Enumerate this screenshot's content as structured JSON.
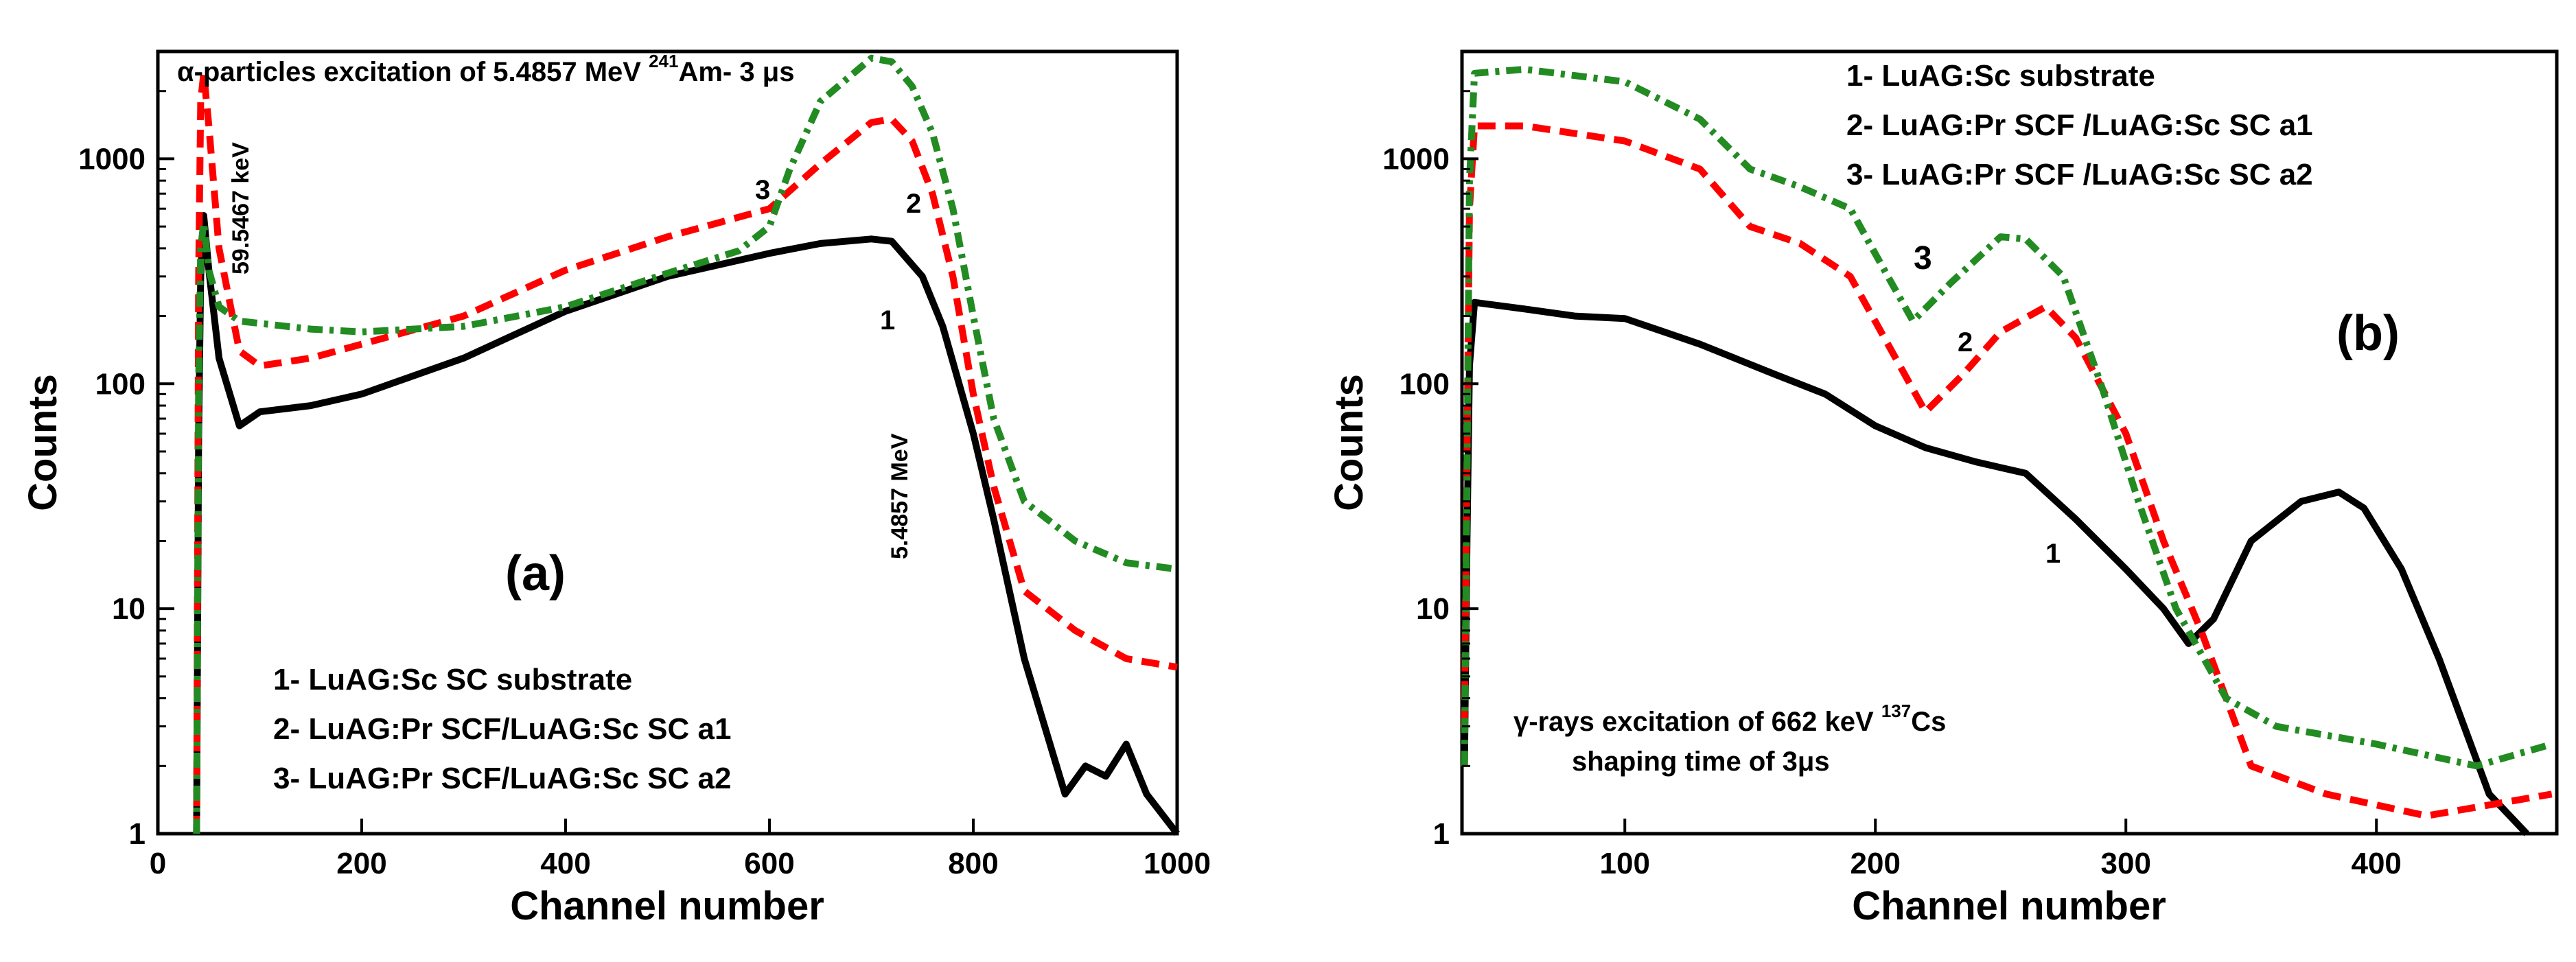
{
  "chart_data": [
    {
      "type": "line",
      "panel_label": "(a)",
      "title": "α-particles excitation of 5.4857 MeV ²⁴¹Am- 3 μs",
      "title_parts": {
        "pre": "α-particles excitation of 5.4857 MeV ",
        "sup": "241",
        "post": "Am- 3 μs"
      },
      "xlabel": "Channel number",
      "ylabel": "Counts",
      "xlim": [
        0,
        1000
      ],
      "ylim": [
        1,
        3000
      ],
      "yscale": "log",
      "x_ticks": [
        0,
        200,
        400,
        600,
        800,
        1000
      ],
      "x_tick_labels": [
        "0",
        "200",
        "400",
        "600",
        "800",
        "1000"
      ],
      "y_ticks": [
        1,
        10,
        100,
        1000
      ],
      "y_tick_labels": [
        "1",
        "10",
        "100",
        "1000"
      ],
      "legend": [
        "1- LuAG:Sc SC substrate",
        "2- LuAG:Pr SCF/LuAG:Sc SC  a1",
        "3- LuAG:Pr SCF/LuAG:Sc SC  a2"
      ],
      "annotations": [
        {
          "text": "59.5467 keV",
          "x": 55,
          "y": 400,
          "rotate": -90
        },
        {
          "text": "5.4857 MeV",
          "x": 690,
          "y": 60,
          "rotate": -90
        },
        {
          "text": "1",
          "x": 700,
          "y": 260
        },
        {
          "text": "2",
          "x": 732,
          "y": 1100
        },
        {
          "text": "3",
          "x": 593,
          "y": 1300
        }
      ],
      "series": [
        {
          "name": "1",
          "color": "#000000",
          "dash": "solid",
          "points": [
            [
              38,
              1
            ],
            [
              40,
              60
            ],
            [
              42,
              300
            ],
            [
              45,
              560
            ],
            [
              50,
              320
            ],
            [
              60,
              130
            ],
            [
              80,
              65
            ],
            [
              100,
              75
            ],
            [
              150,
              80
            ],
            [
              200,
              90
            ],
            [
              300,
              130
            ],
            [
              400,
              210
            ],
            [
              500,
              300
            ],
            [
              600,
              380
            ],
            [
              650,
              420
            ],
            [
              700,
              440
            ],
            [
              720,
              430
            ],
            [
              750,
              300
            ],
            [
              770,
              180
            ],
            [
              800,
              60
            ],
            [
              820,
              25
            ],
            [
              850,
              6
            ],
            [
              870,
              3
            ],
            [
              890,
              1.5
            ],
            [
              910,
              2
            ],
            [
              930,
              1.8
            ],
            [
              950,
              2.5
            ],
            [
              970,
              1.5
            ],
            [
              1000,
              1
            ]
          ]
        },
        {
          "name": "2",
          "color": "#ff0000",
          "dash": "dashed",
          "points": [
            [
              38,
              1
            ],
            [
              40,
              300
            ],
            [
              42,
              1800
            ],
            [
              45,
              2400
            ],
            [
              50,
              1400
            ],
            [
              60,
              400
            ],
            [
              80,
              140
            ],
            [
              100,
              120
            ],
            [
              150,
              130
            ],
            [
              200,
              150
            ],
            [
              300,
              200
            ],
            [
              400,
              320
            ],
            [
              500,
              450
            ],
            [
              600,
              600
            ],
            [
              650,
              950
            ],
            [
              700,
              1450
            ],
            [
              720,
              1500
            ],
            [
              740,
              1200
            ],
            [
              760,
              700
            ],
            [
              780,
              300
            ],
            [
              800,
              90
            ],
            [
              820,
              35
            ],
            [
              850,
              12
            ],
            [
              900,
              8
            ],
            [
              950,
              6
            ],
            [
              1000,
              5.5
            ]
          ]
        },
        {
          "name": "3",
          "color": "#228b22",
          "dash": "dashdot",
          "points": [
            [
              38,
              1
            ],
            [
              40,
              100
            ],
            [
              42,
              400
            ],
            [
              45,
              520
            ],
            [
              50,
              320
            ],
            [
              60,
              220
            ],
            [
              80,
              190
            ],
            [
              150,
              175
            ],
            [
              200,
              170
            ],
            [
              300,
              180
            ],
            [
              400,
              220
            ],
            [
              500,
              310
            ],
            [
              570,
              390
            ],
            [
              600,
              500
            ],
            [
              620,
              900
            ],
            [
              650,
              1800
            ],
            [
              700,
              2800
            ],
            [
              720,
              2700
            ],
            [
              740,
              2100
            ],
            [
              760,
              1300
            ],
            [
              780,
              600
            ],
            [
              800,
              200
            ],
            [
              820,
              70
            ],
            [
              850,
              30
            ],
            [
              900,
              20
            ],
            [
              950,
              16
            ],
            [
              1000,
              15
            ]
          ]
        }
      ]
    },
    {
      "type": "line",
      "panel_label": "(b)",
      "title": "γ-rays excitation of 662 keV ¹³⁷Cs shaping time of 3μs",
      "title_parts": {
        "pre": "γ-rays excitation of 662 keV ",
        "sup": "137",
        "post": "Cs",
        "line2": "shaping time of 3μs"
      },
      "xlabel": "Channel number",
      "ylabel": "Counts",
      "xlim": [
        35,
        472
      ],
      "ylim": [
        1,
        3000
      ],
      "yscale": "log",
      "x_ticks": [
        100,
        200,
        300,
        400
      ],
      "x_tick_labels": [
        "100",
        "200",
        "300",
        "400"
      ],
      "y_ticks": [
        1,
        10,
        100,
        1000
      ],
      "y_tick_labels": [
        "1",
        "10",
        "100",
        "1000"
      ],
      "legend": [
        "1- LuAG:Sc substrate",
        "2- LuAG:Pr SCF /LuAG:Sc SC a1",
        "3- LuAG:Pr SCF /LuAG:Sc SC a2"
      ],
      "annotations": [
        {
          "text": "1",
          "x": 238,
          "y": 14
        },
        {
          "text": "2",
          "x": 212,
          "y": 95
        },
        {
          "text": "3",
          "x": 208,
          "y": 300
        }
      ],
      "series": [
        {
          "name": "1",
          "color": "#000000",
          "dash": "solid",
          "points": [
            [
              36,
              2
            ],
            [
              37,
              20
            ],
            [
              38,
              120
            ],
            [
              40,
              230
            ],
            [
              60,
              215
            ],
            [
              80,
              200
            ],
            [
              100,
              195
            ],
            [
              130,
              150
            ],
            [
              160,
              110
            ],
            [
              180,
              90
            ],
            [
              200,
              65
            ],
            [
              220,
              52
            ],
            [
              240,
              45
            ],
            [
              260,
              40
            ],
            [
              280,
              25
            ],
            [
              300,
              15
            ],
            [
              315,
              10
            ],
            [
              325,
              7
            ],
            [
              335,
              9
            ],
            [
              350,
              20
            ],
            [
              370,
              30
            ],
            [
              385,
              33
            ],
            [
              395,
              28
            ],
            [
              410,
              15
            ],
            [
              425,
              6
            ],
            [
              435,
              3
            ],
            [
              445,
              1.5
            ],
            [
              460,
              1
            ]
          ]
        },
        {
          "name": "2",
          "color": "#ff0000",
          "dash": "dashed",
          "points": [
            [
              36,
              3
            ],
            [
              37,
              50
            ],
            [
              38,
              600
            ],
            [
              40,
              1400
            ],
            [
              60,
              1400
            ],
            [
              100,
              1200
            ],
            [
              130,
              900
            ],
            [
              150,
              500
            ],
            [
              170,
              420
            ],
            [
              190,
              300
            ],
            [
              205,
              150
            ],
            [
              220,
              75
            ],
            [
              235,
              110
            ],
            [
              250,
              170
            ],
            [
              268,
              220
            ],
            [
              280,
              160
            ],
            [
              300,
              60
            ],
            [
              315,
              20
            ],
            [
              330,
              8
            ],
            [
              350,
              2
            ],
            [
              380,
              1.5
            ],
            [
              420,
              1.2
            ],
            [
              470,
              1.5
            ]
          ]
        },
        {
          "name": "3",
          "color": "#228b22",
          "dash": "dashdot",
          "points": [
            [
              36,
              2
            ],
            [
              37,
              40
            ],
            [
              38,
              800
            ],
            [
              40,
              2400
            ],
            [
              60,
              2500
            ],
            [
              100,
              2200
            ],
            [
              130,
              1500
            ],
            [
              150,
              900
            ],
            [
              170,
              750
            ],
            [
              190,
              600
            ],
            [
              205,
              300
            ],
            [
              215,
              190
            ],
            [
              230,
              280
            ],
            [
              250,
              450
            ],
            [
              260,
              440
            ],
            [
              275,
              300
            ],
            [
              290,
              100
            ],
            [
              305,
              30
            ],
            [
              320,
              10
            ],
            [
              340,
              4
            ],
            [
              360,
              3
            ],
            [
              400,
              2.5
            ],
            [
              440,
              2
            ],
            [
              470,
              2.5
            ]
          ]
        }
      ]
    }
  ]
}
